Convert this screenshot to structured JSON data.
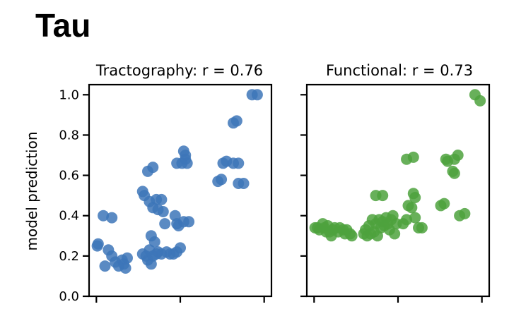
{
  "figure_title": "Tau",
  "chart_data": [
    {
      "type": "scatter",
      "title": "Tractography: r = 0.76",
      "xlabel": "",
      "ylabel": "model prediction",
      "ylim": [
        0,
        1.05
      ],
      "yticks": [
        "0.0",
        "0.2",
        "0.4",
        "0.6",
        "0.8",
        "1.0"
      ],
      "color": "#3d76b8",
      "series": [
        {
          "points": [
            [
              0.015,
              0.25
            ],
            [
              0.02,
              0.26
            ],
            [
              0.05,
              0.4
            ],
            [
              0.1,
              0.39
            ],
            [
              0.06,
              0.15
            ],
            [
              0.08,
              0.23
            ],
            [
              0.1,
              0.2
            ],
            [
              0.12,
              0.17
            ],
            [
              0.14,
              0.15
            ],
            [
              0.16,
              0.18
            ],
            [
              0.17,
              0.16
            ],
            [
              0.18,
              0.14
            ],
            [
              0.19,
              0.19
            ],
            [
              0.28,
              0.21
            ],
            [
              0.3,
              0.2
            ],
            [
              0.31,
              0.18
            ],
            [
              0.32,
              0.23
            ],
            [
              0.33,
              0.16
            ],
            [
              0.34,
              0.2
            ],
            [
              0.36,
              0.21
            ],
            [
              0.37,
              0.22
            ],
            [
              0.39,
              0.21
            ],
            [
              0.42,
              0.22
            ],
            [
              0.44,
              0.21
            ],
            [
              0.46,
              0.21
            ],
            [
              0.48,
              0.22
            ],
            [
              0.5,
              0.24
            ],
            [
              0.33,
              0.3
            ],
            [
              0.35,
              0.27
            ],
            [
              0.28,
              0.52
            ],
            [
              0.29,
              0.5
            ],
            [
              0.31,
              0.62
            ],
            [
              0.34,
              0.64
            ],
            [
              0.32,
              0.47
            ],
            [
              0.36,
              0.48
            ],
            [
              0.34,
              0.44
            ],
            [
              0.37,
              0.43
            ],
            [
              0.39,
              0.48
            ],
            [
              0.4,
              0.42
            ],
            [
              0.41,
              0.36
            ],
            [
              0.47,
              0.4
            ],
            [
              0.48,
              0.36
            ],
            [
              0.49,
              0.35
            ],
            [
              0.52,
              0.37
            ],
            [
              0.55,
              0.37
            ],
            [
              0.48,
              0.66
            ],
            [
              0.51,
              0.66
            ],
            [
              0.52,
              0.72
            ],
            [
              0.53,
              0.7
            ],
            [
              0.53,
              0.68
            ],
            [
              0.54,
              0.66
            ],
            [
              0.72,
              0.57
            ],
            [
              0.74,
              0.58
            ],
            [
              0.75,
              0.66
            ],
            [
              0.77,
              0.67
            ],
            [
              0.81,
              0.66
            ],
            [
              0.84,
              0.66
            ],
            [
              0.81,
              0.86
            ],
            [
              0.83,
              0.87
            ],
            [
              0.84,
              0.56
            ],
            [
              0.87,
              0.56
            ],
            [
              0.92,
              1.0
            ],
            [
              0.95,
              1.0
            ]
          ]
        }
      ]
    },
    {
      "type": "scatter",
      "title": "Functional: r = 0.73",
      "xlabel": "",
      "ylabel": "",
      "ylim": [
        0,
        1.05
      ],
      "color": "#4da23d",
      "series": [
        {
          "points": [
            [
              0.015,
              0.34
            ],
            [
              0.03,
              0.34
            ],
            [
              0.04,
              0.33
            ],
            [
              0.06,
              0.36
            ],
            [
              0.07,
              0.34
            ],
            [
              0.08,
              0.32
            ],
            [
              0.09,
              0.35
            ],
            [
              0.1,
              0.32
            ],
            [
              0.11,
              0.3
            ],
            [
              0.12,
              0.33
            ],
            [
              0.13,
              0.34
            ],
            [
              0.15,
              0.32
            ],
            [
              0.16,
              0.34
            ],
            [
              0.18,
              0.33
            ],
            [
              0.19,
              0.31
            ],
            [
              0.2,
              0.33
            ],
            [
              0.22,
              0.31
            ],
            [
              0.23,
              0.3
            ],
            [
              0.3,
              0.31
            ],
            [
              0.31,
              0.33
            ],
            [
              0.32,
              0.3
            ],
            [
              0.33,
              0.35
            ],
            [
              0.34,
              0.31
            ],
            [
              0.35,
              0.38
            ],
            [
              0.36,
              0.32
            ],
            [
              0.37,
              0.36
            ],
            [
              0.38,
              0.3
            ],
            [
              0.39,
              0.38
            ],
            [
              0.4,
              0.34
            ],
            [
              0.41,
              0.37
            ],
            [
              0.42,
              0.35
            ],
            [
              0.43,
              0.39
            ],
            [
              0.44,
              0.36
            ],
            [
              0.45,
              0.33
            ],
            [
              0.46,
              0.38
            ],
            [
              0.47,
              0.4
            ],
            [
              0.48,
              0.31
            ],
            [
              0.49,
              0.36
            ],
            [
              0.37,
              0.5
            ],
            [
              0.41,
              0.5
            ],
            [
              0.53,
              0.36
            ],
            [
              0.55,
              0.38
            ],
            [
              0.56,
              0.45
            ],
            [
              0.58,
              0.44
            ],
            [
              0.59,
              0.51
            ],
            [
              0.6,
              0.49
            ],
            [
              0.6,
              0.39
            ],
            [
              0.62,
              0.34
            ],
            [
              0.64,
              0.34
            ],
            [
              0.55,
              0.68
            ],
            [
              0.59,
              0.69
            ],
            [
              0.75,
              0.45
            ],
            [
              0.77,
              0.46
            ],
            [
              0.78,
              0.68
            ],
            [
              0.79,
              0.67
            ],
            [
              0.82,
              0.62
            ],
            [
              0.83,
              0.61
            ],
            [
              0.83,
              0.68
            ],
            [
              0.85,
              0.7
            ],
            [
              0.86,
              0.4
            ],
            [
              0.89,
              0.41
            ],
            [
              0.95,
              1.0
            ],
            [
              0.98,
              0.97
            ]
          ]
        }
      ]
    }
  ]
}
